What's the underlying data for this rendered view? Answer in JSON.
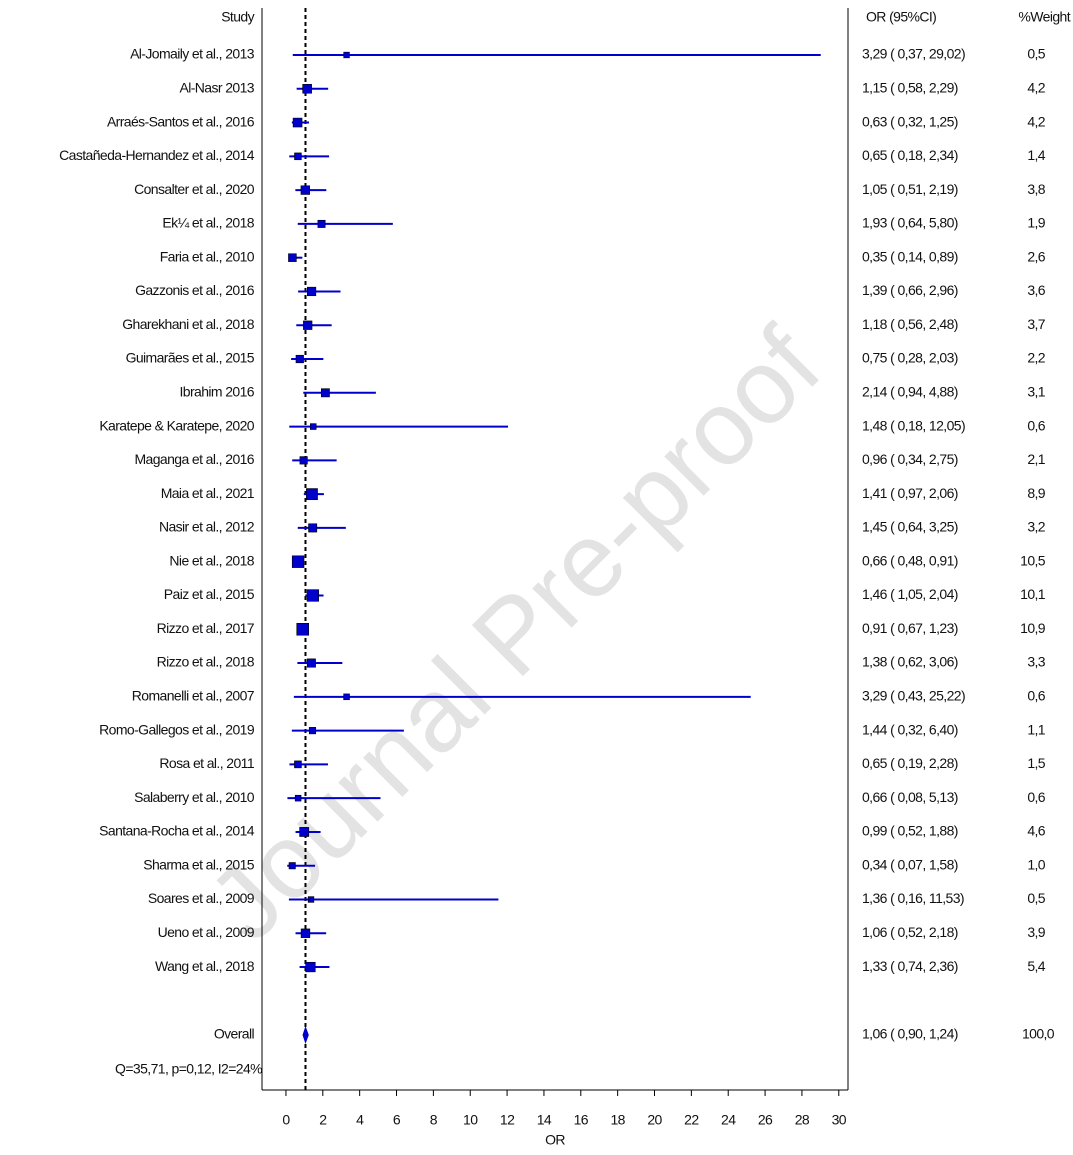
{
  "chart_data": {
    "type": "forest",
    "headers": {
      "study": "Study",
      "ci": "OR (95%CI)",
      "weight": "%Weight"
    },
    "x_label": "OR",
    "color": "#0000cc",
    "xlim": [
      -1.3,
      30.5
    ],
    "xticks": [
      0,
      2,
      4,
      6,
      8,
      10,
      12,
      14,
      16,
      18,
      20,
      22,
      24,
      26,
      28,
      30
    ],
    "categories": [
      "Al-Jomaily et al., 2013",
      "Al-Nasr  2013",
      "Arraés-Santos et al., 2016",
      "Castañeda-Hernandez et al., 2014",
      "Consalter et al., 2020",
      "Ek¼ et al., 2018",
      "Faria et al., 2010",
      "Gazzonis et al., 2016",
      "Gharekhani et al., 2018",
      "Guimarães et al., 2015",
      "Ibrahim 2016",
      "Karatepe & Karatepe, 2020",
      "Maganga et al., 2016",
      "Maia et al., 2021",
      "Nasir et al., 2012",
      "Nie et al., 2018",
      "Paiz et al., 2015",
      "Rizzo et al., 2017",
      "Rizzo et al., 2018",
      "Romanelli et al., 2007",
      "Romo-Gallegos et al., 2019",
      "Rosa et al., 2011",
      "Salaberry et al., 2010",
      "Santana-Rocha et al., 2014",
      "Sharma et al., 2015",
      "Soares et al., 2009",
      "Ueno et al., 2009",
      "Wang et al., 2018"
    ],
    "estimate": [
      3.29,
      1.15,
      0.63,
      0.65,
      1.05,
      1.93,
      0.35,
      1.39,
      1.18,
      0.75,
      2.14,
      1.48,
      0.96,
      1.41,
      1.45,
      0.66,
      1.46,
      0.91,
      1.38,
      3.29,
      1.44,
      0.65,
      0.66,
      0.99,
      0.34,
      1.36,
      1.06,
      1.33
    ],
    "lower": [
      0.37,
      0.58,
      0.32,
      0.18,
      0.51,
      0.64,
      0.14,
      0.66,
      0.56,
      0.28,
      0.94,
      0.18,
      0.34,
      0.97,
      0.64,
      0.48,
      1.05,
      0.67,
      0.62,
      0.43,
      0.32,
      0.19,
      0.08,
      0.52,
      0.07,
      0.16,
      0.52,
      0.74
    ],
    "upper": [
      29.02,
      2.29,
      1.25,
      2.34,
      2.19,
      5.8,
      0.89,
      2.96,
      2.48,
      2.03,
      4.88,
      12.05,
      2.75,
      2.06,
      3.25,
      0.91,
      2.04,
      1.23,
      3.06,
      25.22,
      6.4,
      2.28,
      5.13,
      1.88,
      1.58,
      11.53,
      2.18,
      2.36
    ],
    "ci_text": [
      "3,29 ( 0,37, 29,02)",
      "1,15 ( 0,58, 2,29)",
      "0,63 ( 0,32, 1,25)",
      "0,65 ( 0,18, 2,34)",
      "1,05 ( 0,51, 2,19)",
      "1,93 ( 0,64, 5,80)",
      "0,35 ( 0,14, 0,89)",
      "1,39 ( 0,66, 2,96)",
      "1,18 ( 0,56, 2,48)",
      "0,75 ( 0,28, 2,03)",
      "2,14 ( 0,94, 4,88)",
      "1,48 ( 0,18, 12,05)",
      "0,96 ( 0,34, 2,75)",
      "1,41 ( 0,97, 2,06)",
      "1,45 ( 0,64, 3,25)",
      "0,66 ( 0,48, 0,91)",
      "1,46 ( 1,05, 2,04)",
      "0,91 ( 0,67, 1,23)",
      "1,38 ( 0,62, 3,06)",
      "3,29 ( 0,43, 25,22)",
      "1,44 ( 0,32, 6,40)",
      "0,65 ( 0,19, 2,28)",
      "0,66 ( 0,08, 5,13)",
      "0,99 ( 0,52, 1,88)",
      "0,34 ( 0,07, 1,58)",
      "1,36 ( 0,16, 11,53)",
      "1,06 ( 0,52, 2,18)",
      "1,33 ( 0,74, 2,36)"
    ],
    "weight": [
      0.5,
      4.2,
      4.2,
      1.4,
      3.8,
      1.9,
      2.6,
      3.6,
      3.7,
      2.2,
      3.1,
      0.6,
      2.1,
      8.9,
      3.2,
      10.5,
      10.1,
      10.9,
      3.3,
      0.6,
      1.1,
      1.5,
      0.6,
      4.6,
      1.0,
      0.5,
      3.9,
      5.4
    ],
    "weight_labels": [
      "0,5",
      "4,2",
      "4,2",
      "1,4",
      "3,8",
      "1,9",
      "2,6",
      "3,6",
      "3,7",
      "2,2",
      "3,1",
      "0,6",
      "2,1",
      "8,9",
      "3,2",
      "10,5",
      "10,1",
      "10,9",
      "3,3",
      "0,6",
      "1,1",
      "1,5",
      "0,6",
      "4,6",
      "1,0",
      "0,5",
      "3,9",
      "5,4"
    ],
    "overall": {
      "label": "Overall",
      "estimate": 1.06,
      "lower": 0.9,
      "upper": 1.24,
      "ci_text": "1,06 ( 0,90, 1,24)",
      "weight": 100,
      "weight_label": "100,0"
    },
    "heterogeneity": "Q=35,71, p=0,12, I2=24%",
    "watermark": "Journal Pre-proof"
  }
}
